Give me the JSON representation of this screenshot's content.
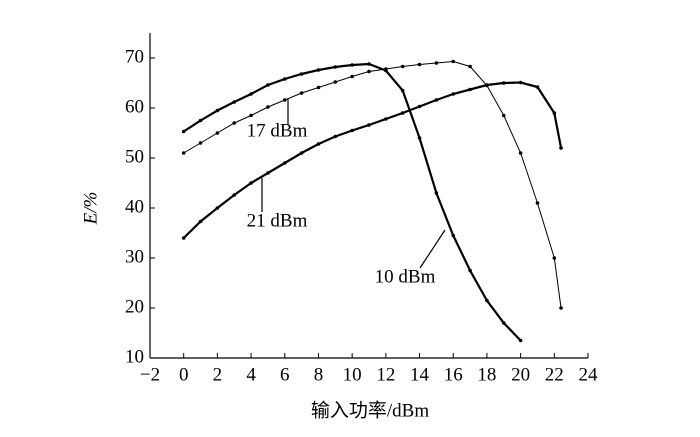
{
  "chart_data": {
    "type": "line",
    "xlabel": "输入功率/dBm",
    "ylabel": "E/%",
    "xlim": [
      -2,
      24
    ],
    "xticks": [
      {
        "value": -2,
        "label": "−2"
      },
      0,
      2,
      4,
      6,
      8,
      10,
      12,
      14,
      16,
      18,
      20,
      22,
      24
    ],
    "ylim": [
      10,
      75
    ],
    "yticks": [
      10,
      20,
      30,
      40,
      50,
      60,
      70
    ],
    "series": [
      {
        "name": "10 dBm",
        "color": "#000000",
        "width": "thick",
        "x": [
          0,
          1,
          2,
          3,
          4,
          5,
          6,
          7,
          8,
          9,
          10,
          11,
          12,
          13,
          14,
          15,
          16,
          17,
          18,
          19,
          20
        ],
        "values": [
          55.3,
          57.5,
          59.5,
          61.2,
          62.8,
          64.6,
          65.8,
          66.8,
          67.6,
          68.2,
          68.6,
          68.8,
          67.5,
          63.5,
          54,
          43,
          34.5,
          27.5,
          21.5,
          17,
          13.5
        ]
      },
      {
        "name": "17 dBm",
        "color": "#000000",
        "width": "thin",
        "x": [
          0,
          1,
          2,
          3,
          4,
          5,
          6,
          7,
          8,
          9,
          10,
          11,
          12,
          13,
          14,
          15,
          16,
          17,
          18,
          19,
          20,
          21,
          22,
          22.4
        ],
        "values": [
          51,
          53,
          55,
          57,
          58.5,
          60.2,
          61.6,
          63,
          64.1,
          65.2,
          66.3,
          67.3,
          67.8,
          68.3,
          68.7,
          69,
          69.3,
          68.3,
          64.5,
          58.5,
          51,
          41,
          30,
          20
        ]
      },
      {
        "name": "21 dBm",
        "color": "#000000",
        "width": "thick",
        "x": [
          0,
          1,
          2,
          3,
          4,
          5,
          6,
          7,
          8,
          9,
          10,
          11,
          12,
          13,
          14,
          15,
          16,
          17,
          18,
          19,
          20,
          21,
          22,
          22.4
        ],
        "values": [
          34,
          37.3,
          40,
          42.6,
          45,
          47,
          49,
          51,
          52.8,
          54.3,
          55.5,
          56.6,
          57.8,
          59,
          60.3,
          61.6,
          62.8,
          63.7,
          64.6,
          65,
          65.1,
          64.2,
          59,
          52
        ]
      }
    ]
  }
}
